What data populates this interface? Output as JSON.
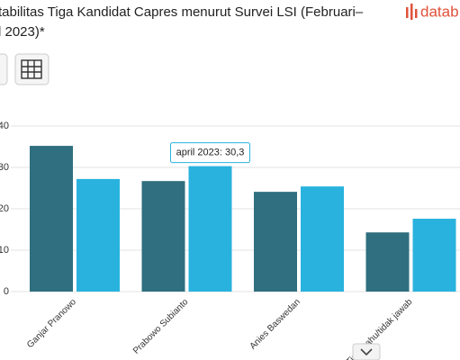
{
  "chart_data": {
    "type": "bar",
    "title": [
      "tabilitas Tiga Kandidat Capres menurut Survei LSI (Februari–",
      "l 2023)*"
    ],
    "logo": "datab",
    "categories": [
      "Ganjar Pranowo",
      "Prabowo Subianto",
      "Anies Baswedan",
      "Tidak tahu/tidak jawab"
    ],
    "series": [
      {
        "color": "#2f6f7f",
        "values": [
          35.2,
          26.7,
          24.1,
          14.3
        ]
      },
      {
        "color": "#29b2de",
        "values": [
          27.2,
          30.3,
          25.4,
          17.6
        ]
      }
    ],
    "tooltip": "april 2023: 30,3",
    "ylim": [
      0,
      40
    ],
    "yticks": [
      0,
      10,
      20,
      30,
      40
    ],
    "grid": true
  }
}
